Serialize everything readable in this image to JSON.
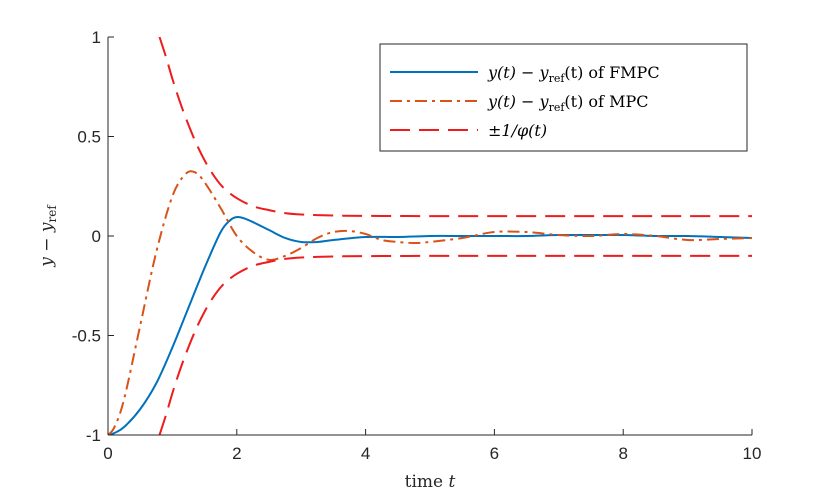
{
  "chart_data": {
    "type": "line",
    "title": "",
    "xlabel": "time t",
    "ylabel": "y − y_ref",
    "xlim": [
      0,
      10
    ],
    "ylim": [
      -1,
      1
    ],
    "xticks": [
      0,
      2,
      4,
      6,
      8,
      10
    ],
    "xtick_labels": [
      "0",
      "2",
      "4",
      "6",
      "8",
      "10"
    ],
    "yticks": [
      -1,
      -0.5,
      0,
      0.5,
      1
    ],
    "ytick_labels": [
      "-1",
      "-0.5",
      "0",
      "0.5",
      "1"
    ],
    "grid": false,
    "legend_position": "top-right",
    "series": [
      {
        "name": "y(t) − y_ref(t) of FMPC",
        "color": "#0072BD",
        "style": "solid",
        "x": [
          0,
          0.1,
          0.25,
          0.5,
          0.75,
          1.0,
          1.25,
          1.5,
          1.75,
          1.9,
          2.0,
          2.1,
          2.25,
          2.5,
          2.75,
          3.0,
          3.25,
          3.5,
          4.0,
          4.5,
          5.0,
          5.5,
          6.0,
          6.5,
          7.0,
          7.5,
          8.0,
          8.5,
          9.0,
          9.5,
          10.0
        ],
        "y": [
          -1.0,
          -0.99,
          -0.96,
          -0.87,
          -0.74,
          -0.56,
          -0.36,
          -0.16,
          0.02,
          0.08,
          0.095,
          0.09,
          0.07,
          0.03,
          -0.01,
          -0.03,
          -0.03,
          -0.02,
          -0.005,
          -0.005,
          0.0,
          0.0,
          0.0,
          0.0,
          0.005,
          0.005,
          0.005,
          0.0,
          0.0,
          -0.005,
          -0.01
        ]
      },
      {
        "name": "y(t) − y_ref(t) of MPC",
        "color": "#D95319",
        "style": "dash-dot",
        "x": [
          0,
          0.1,
          0.25,
          0.5,
          0.75,
          1.0,
          1.2,
          1.35,
          1.5,
          1.75,
          2.0,
          2.25,
          2.5,
          2.75,
          3.0,
          3.25,
          3.5,
          3.75,
          4.0,
          4.25,
          4.5,
          4.75,
          5.0,
          5.5,
          6.0,
          6.5,
          7.0,
          7.5,
          8.0,
          8.5,
          9.0,
          9.5,
          10.0
        ],
        "y": [
          -1.0,
          -0.96,
          -0.82,
          -0.45,
          -0.08,
          0.2,
          0.31,
          0.32,
          0.27,
          0.14,
          0.0,
          -0.08,
          -0.12,
          -0.1,
          -0.06,
          -0.01,
          0.02,
          0.025,
          0.01,
          -0.02,
          -0.03,
          -0.035,
          -0.03,
          -0.01,
          0.02,
          0.02,
          0.005,
          0.0,
          0.01,
          0.0,
          -0.02,
          -0.015,
          -0.01
        ]
      },
      {
        "name": "±1/φ(t)",
        "color": "#EE1C1C",
        "style": "dashed",
        "x": [
          0.8,
          0.9,
          1.0,
          1.1,
          1.2,
          1.35,
          1.5,
          1.65,
          1.8,
          2.0,
          2.25,
          2.5,
          2.75,
          3.0,
          3.5,
          4.0,
          5.0,
          6.0,
          7.0,
          8.0,
          9.0,
          10.0
        ],
        "y": [
          1.0,
          0.9,
          0.79,
          0.69,
          0.6,
          0.48,
          0.38,
          0.3,
          0.24,
          0.19,
          0.15,
          0.13,
          0.115,
          0.108,
          0.103,
          0.101,
          0.1,
          0.1,
          0.1,
          0.1,
          0.1,
          0.1
        ],
        "mirrored": true
      }
    ]
  },
  "legend": {
    "fmpc_label_prefix": "y(t) − y",
    "fmpc_label_sub": "ref",
    "fmpc_label_suffix": "(t) of FMPC",
    "mpc_label_prefix": "y(t) − y",
    "mpc_label_sub": "ref",
    "mpc_label_suffix": "(t) of MPC",
    "bound_label": "±1/φ(t)"
  },
  "axes": {
    "xlabel_prefix": "time ",
    "xlabel_var": "t",
    "ylabel_prefix": "y − y",
    "ylabel_sub": "ref"
  }
}
